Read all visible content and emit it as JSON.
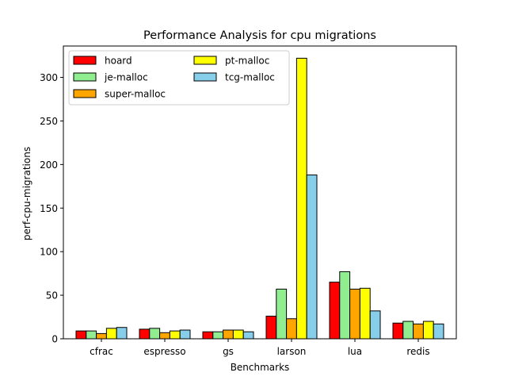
{
  "chart_data": {
    "type": "bar",
    "title": "Performance Analysis for cpu migrations",
    "xlabel": "Benchmarks",
    "ylabel": "perf-cpu-migrations",
    "categories": [
      "cfrac",
      "espresso",
      "gs",
      "larson",
      "lua",
      "redis"
    ],
    "ylim": [
      0,
      336
    ],
    "yticks": [
      0,
      50,
      100,
      150,
      200,
      250,
      300
    ],
    "grid": false,
    "legend_position": "top-left",
    "series": [
      {
        "name": "hoard",
        "color": "#ff0000",
        "values": [
          9,
          11,
          8,
          26,
          65,
          18
        ]
      },
      {
        "name": "je-malloc",
        "color": "#90ee90",
        "values": [
          9,
          12,
          8,
          57,
          77,
          20
        ]
      },
      {
        "name": "super-malloc",
        "color": "#ffa500",
        "values": [
          6,
          7,
          10,
          23,
          57,
          17
        ]
      },
      {
        "name": "pt-malloc",
        "color": "#ffff00",
        "values": [
          12,
          9,
          10,
          322,
          58,
          20
        ]
      },
      {
        "name": "tcg-malloc",
        "color": "#87ceeb",
        "values": [
          13,
          10,
          8,
          188,
          32,
          17
        ]
      }
    ]
  }
}
